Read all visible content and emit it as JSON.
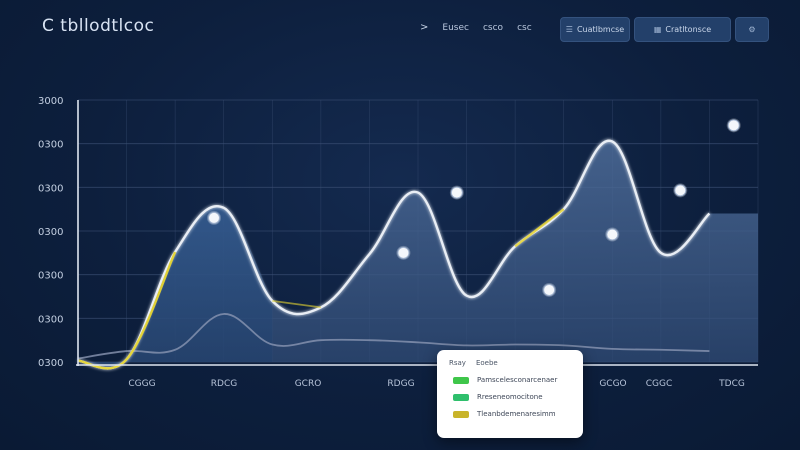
{
  "header": {
    "logo_text": "C tbllodtlcoc",
    "breadcrumb": [
      ">",
      "Eusec",
      "csco",
      "csc"
    ],
    "buttons": [
      {
        "label": "Cuatlbmcse",
        "icon": "menu-icon"
      },
      {
        "label": "Cratltonsce",
        "icon": "grid-icon"
      }
    ],
    "icon_button": "settings-icon"
  },
  "legend": {
    "header": [
      "Rsay",
      "Eoebe"
    ],
    "items": [
      {
        "label": "Pamscelesconarcenaer",
        "color": "#3fc64a"
      },
      {
        "label": "Rreseneomocitone",
        "color": "#2fbf6c"
      },
      {
        "label": "Tleanbdemenaresimm",
        "color": "#c9b42a"
      }
    ]
  },
  "chart_data": {
    "type": "line",
    "title": "",
    "xlabel": "",
    "ylabel": "",
    "y_tick_labels": [
      "3000",
      "0300",
      "0300",
      "0300",
      "0300",
      "0300",
      "0300"
    ],
    "x_tick_labels": [
      "CGGG",
      "RDCG",
      "GCRO",
      "RDGG",
      "GCGO",
      "CGGC",
      "TDCG"
    ],
    "grid": true,
    "legend_position": "bottom-right",
    "colors": {
      "main_line": "#e9eef5",
      "highlight": "#e5d431",
      "area_fill": "#4a6a9a",
      "grid": "#3c5075",
      "axis": "#dfe6f1"
    },
    "x": [
      0,
      0.5,
      1,
      1.5,
      2,
      2.5,
      3,
      3.5,
      4,
      4.5,
      5,
      5.5,
      6,
      6.5
    ],
    "series": [
      {
        "values": [
          30,
          60,
          2520,
          3530,
          1400,
          1250,
          2470,
          3880,
          1520,
          2650,
          3500,
          5050,
          2500,
          3400
        ]
      },
      {
        "values": [
          80,
          250,
          280,
          1100,
          400,
          500,
          500,
          450,
          380,
          400,
          380,
          300,
          280,
          250
        ]
      }
    ],
    "markers": [
      {
        "x": 1.4,
        "y": 3300
      },
      {
        "x": 3.35,
        "y": 2500
      },
      {
        "x": 3.9,
        "y": 3880
      },
      {
        "x": 4.85,
        "y": 1650
      },
      {
        "x": 5.5,
        "y": 2920
      },
      {
        "x": 6.2,
        "y": 3930
      },
      {
        "x": 6.75,
        "y": 5420
      }
    ],
    "ylim": [
      0,
      6000
    ]
  }
}
